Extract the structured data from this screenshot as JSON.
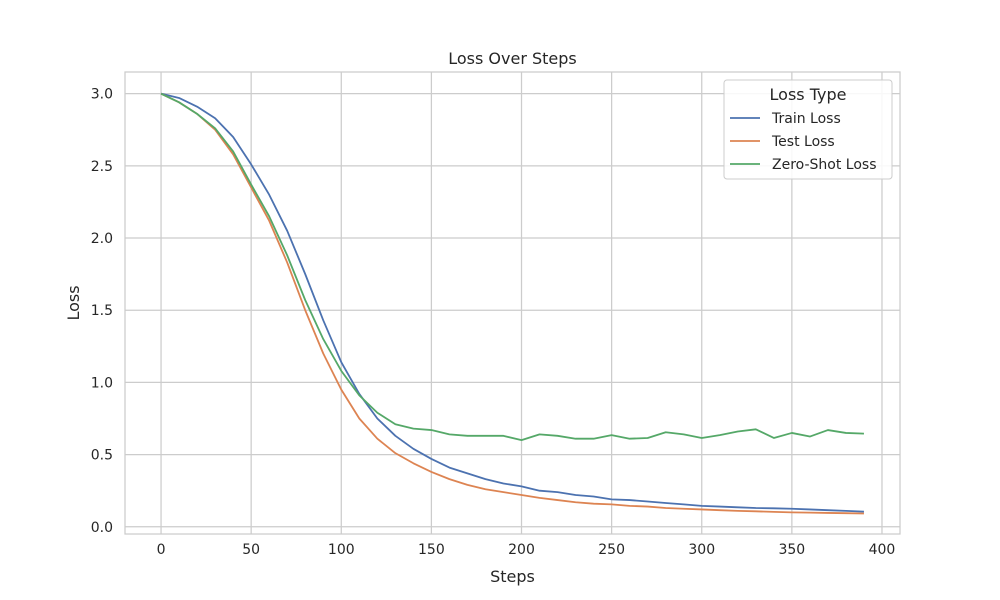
{
  "chart_data": {
    "type": "line",
    "title": "Loss Over Steps",
    "xlabel": "Steps",
    "ylabel": "Loss",
    "xlim": [
      -20,
      410
    ],
    "ylim": [
      -0.05,
      3.15
    ],
    "xticks": [
      0,
      50,
      100,
      150,
      200,
      250,
      300,
      350,
      400
    ],
    "yticks": [
      0.0,
      0.5,
      1.0,
      1.5,
      2.0,
      2.5,
      3.0
    ],
    "grid": true,
    "legend": {
      "title": "Loss Type",
      "placement": "top-right"
    },
    "x": [
      0,
      10,
      20,
      30,
      40,
      50,
      60,
      70,
      80,
      90,
      100,
      110,
      120,
      130,
      140,
      150,
      160,
      170,
      180,
      190,
      200,
      210,
      220,
      230,
      240,
      250,
      260,
      270,
      280,
      290,
      300,
      310,
      320,
      330,
      340,
      350,
      360,
      370,
      380,
      390
    ],
    "series": [
      {
        "name": "Train Loss",
        "color": "#4c72b0",
        "values": [
          3.0,
          2.97,
          2.91,
          2.83,
          2.7,
          2.51,
          2.3,
          2.05,
          1.75,
          1.43,
          1.14,
          0.92,
          0.75,
          0.63,
          0.54,
          0.47,
          0.41,
          0.37,
          0.33,
          0.3,
          0.28,
          0.25,
          0.24,
          0.22,
          0.21,
          0.19,
          0.185,
          0.175,
          0.165,
          0.155,
          0.145,
          0.14,
          0.135,
          0.13,
          0.128,
          0.125,
          0.12,
          0.115,
          0.11,
          0.105
        ]
      },
      {
        "name": "Test Loss",
        "color": "#dd8452",
        "values": [
          3.0,
          2.94,
          2.86,
          2.75,
          2.58,
          2.35,
          2.12,
          1.83,
          1.5,
          1.2,
          0.95,
          0.75,
          0.61,
          0.51,
          0.44,
          0.38,
          0.33,
          0.29,
          0.26,
          0.24,
          0.22,
          0.2,
          0.185,
          0.17,
          0.16,
          0.155,
          0.145,
          0.14,
          0.13,
          0.125,
          0.12,
          0.115,
          0.11,
          0.107,
          0.103,
          0.1,
          0.098,
          0.096,
          0.094,
          0.092
        ]
      },
      {
        "name": "Zero-Shot Loss",
        "color": "#55a868",
        "values": [
          3.0,
          2.94,
          2.86,
          2.76,
          2.6,
          2.37,
          2.15,
          1.88,
          1.57,
          1.3,
          1.08,
          0.91,
          0.79,
          0.71,
          0.68,
          0.67,
          0.64,
          0.63,
          0.63,
          0.63,
          0.6,
          0.64,
          0.63,
          0.61,
          0.61,
          0.635,
          0.61,
          0.615,
          0.655,
          0.64,
          0.615,
          0.635,
          0.66,
          0.675,
          0.615,
          0.65,
          0.625,
          0.67,
          0.65,
          0.645
        ]
      }
    ]
  }
}
